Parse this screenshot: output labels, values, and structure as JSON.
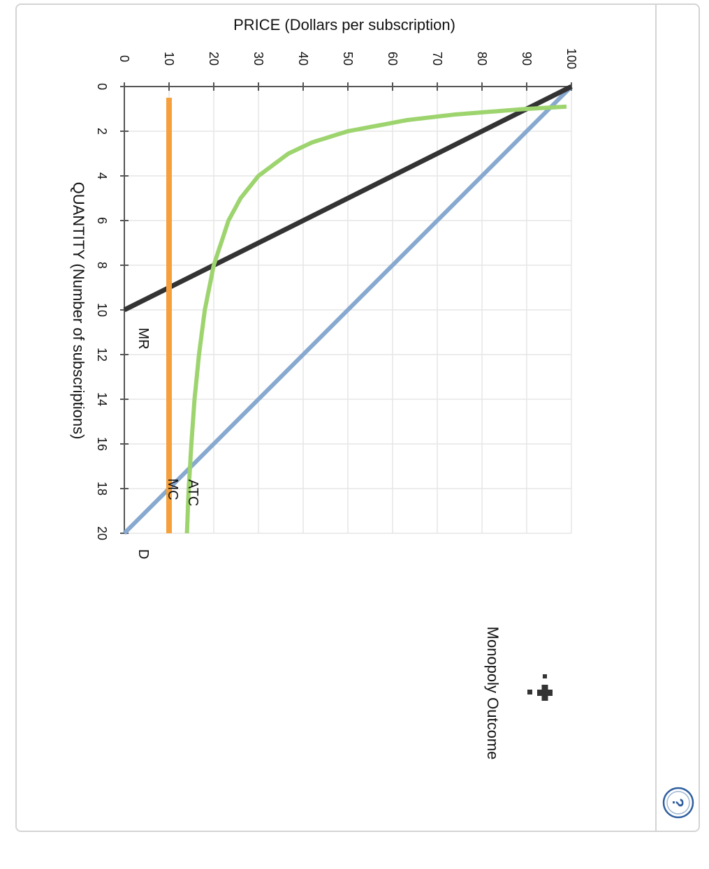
{
  "chart_data": {
    "type": "line",
    "orientation": "rotated-90-clockwise",
    "title": "",
    "xlabel": "QUANTITY (Number of subscriptions)",
    "ylabel": "PRICE (Dollars per subscription)",
    "xlim": [
      0,
      20
    ],
    "ylim": [
      0,
      100
    ],
    "x_ticks": [
      "0",
      "2",
      "4",
      "6",
      "8",
      "10",
      "12",
      "14",
      "16",
      "18",
      "20"
    ],
    "y_ticks": [
      "0",
      "10",
      "20",
      "30",
      "40",
      "50",
      "60",
      "70",
      "80",
      "90",
      "100"
    ],
    "grid": true,
    "series": [
      {
        "name": "D",
        "color": "#87a9d0",
        "x": [
          0,
          20
        ],
        "y": [
          100,
          0
        ]
      },
      {
        "name": "MR",
        "color": "#333333",
        "x": [
          0,
          10
        ],
        "y": [
          100,
          0
        ]
      },
      {
        "name": "MC",
        "color": "#f5a03c",
        "x": [
          0.5,
          20
        ],
        "y": [
          10,
          10
        ]
      },
      {
        "name": "ATC",
        "color": "#9dd46e",
        "x": [
          0.9,
          1,
          1.25,
          1.5,
          2,
          2.5,
          3,
          4,
          5,
          6,
          8,
          10,
          12,
          14,
          16,
          18,
          20
        ],
        "y": [
          98.9,
          90,
          74,
          63.3,
          50,
          42,
          36.7,
          30,
          26,
          23.3,
          20,
          18,
          16.7,
          15.7,
          15,
          14.4,
          14
        ]
      }
    ],
    "curve_labels": {
      "D": "D",
      "MR": "MR",
      "MC": "MC",
      "ATC": "ATC"
    }
  },
  "tools": {
    "monopoly_outcome": {
      "label": "Monopoly Outcome",
      "icon": "cross-marker-icon",
      "color": "#333333"
    }
  },
  "help": {
    "icon": "question-icon",
    "color": "#2f5f9e"
  }
}
